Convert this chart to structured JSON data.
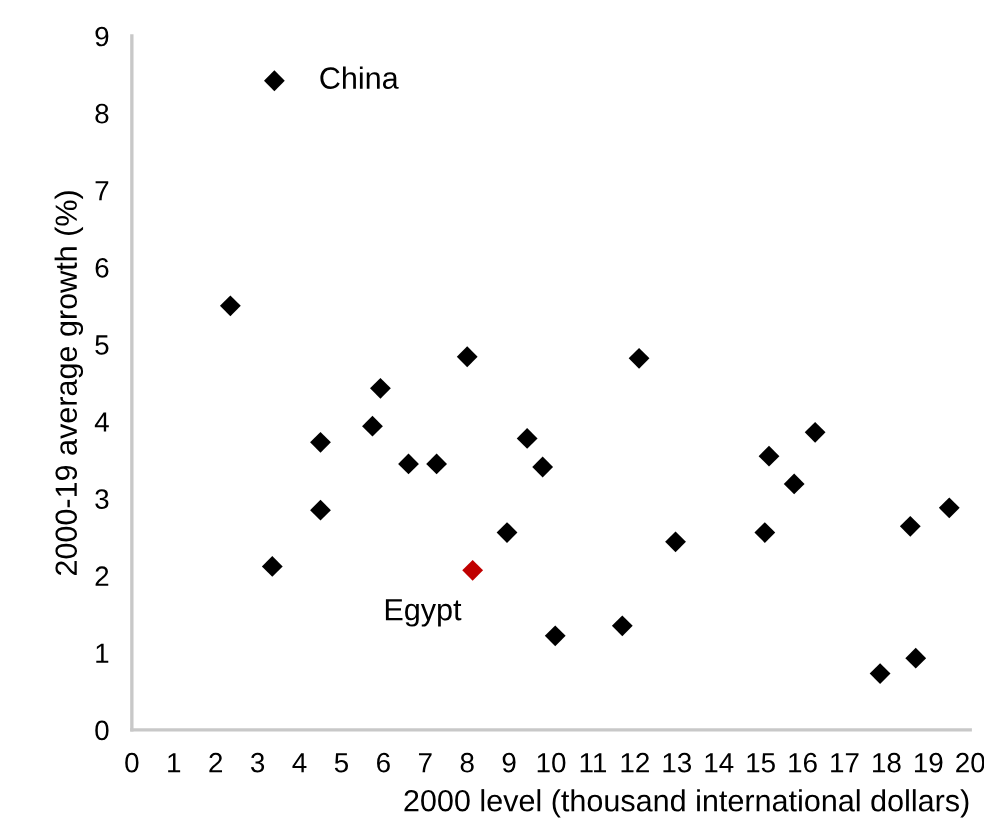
{
  "chart_data": {
    "type": "scatter",
    "xlabel": "2000 level (thousand international dollars)",
    "ylabel": "2000-19 average growth (%)",
    "x": [
      3.4,
      2.35,
      3.35,
      4.5,
      4.5,
      5.74,
      5.93,
      6.6,
      7.27,
      8.0,
      8.13,
      8.95,
      9.43,
      9.8,
      10.1,
      11.7,
      12.1,
      12.97,
      15.1,
      15.2,
      15.8,
      16.3,
      17.85,
      18.57,
      18.7,
      19.5
    ],
    "values": [
      8.42,
      5.5,
      2.12,
      3.73,
      2.85,
      3.94,
      4.43,
      3.45,
      3.45,
      4.84,
      2.07,
      2.56,
      3.78,
      3.41,
      1.22,
      1.35,
      4.82,
      2.44,
      2.56,
      3.55,
      3.19,
      3.86,
      0.73,
      2.64,
      0.93,
      2.88
    ],
    "colors": [
      "#000000",
      "#000000",
      "#000000",
      "#000000",
      "#000000",
      "#000000",
      "#000000",
      "#000000",
      "#000000",
      "#000000",
      "#c00000",
      "#000000",
      "#000000",
      "#000000",
      "#000000",
      "#000000",
      "#000000",
      "#000000",
      "#000000",
      "#000000",
      "#000000",
      "#000000",
      "#000000",
      "#000000",
      "#000000",
      "#000000"
    ],
    "marker": "diamond",
    "grid": false,
    "legend": false,
    "xlim": [
      0,
      20
    ],
    "xticks": [
      0,
      1,
      2,
      3,
      4,
      5,
      6,
      7,
      8,
      9,
      10,
      11,
      12,
      13,
      14,
      15,
      16,
      17,
      18,
      19,
      20
    ],
    "ylim": [
      0,
      9
    ],
    "yticks": [
      0,
      1,
      2,
      3,
      4,
      5,
      6,
      7,
      8,
      9
    ],
    "annotations": [
      {
        "text": "China",
        "x": 3.4,
        "y": 8.42
      },
      {
        "text": "Egypt",
        "x": 8.13,
        "y": 2.07
      }
    ]
  }
}
